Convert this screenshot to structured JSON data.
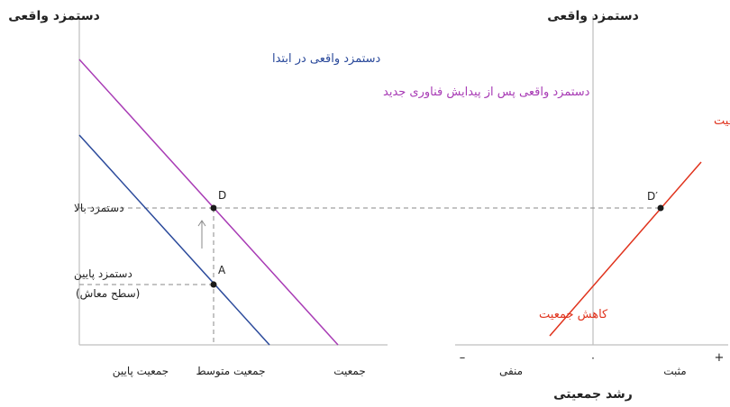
{
  "left_panel": {
    "y_axis_title": "دستمزد واقعی",
    "x_axis_label": "جمعیت",
    "x_tick_low": "جمعیت پایین",
    "x_tick_mid": "جمعیت متوسط",
    "y_tick_high": "دستمزد بالا",
    "y_tick_low_line1": "دستمزد پایین",
    "y_tick_low_line2": "(سطح معاش)",
    "legend_initial": "دستمزد واقعی در ابتدا",
    "legend_after": "دستمزد واقعی پس از پیدایش فناوری جدید",
    "point_a": "A",
    "point_d": "D"
  },
  "right_panel": {
    "y_axis_title": "دستمزد واقعی",
    "x_axis_title": "رشد جمعیتی",
    "minus_sign": "–",
    "plus_sign": "+",
    "zero_label": "۰",
    "negative_label": "منفی",
    "positive_label": "مثبت",
    "label_increase": "افزایش جمعیت",
    "label_decrease": "کاهش جمعیت",
    "point_d_prime": "D′"
  },
  "colors": {
    "initial_line": "#2b4a9b",
    "after_line": "#a83bb5",
    "growth_line": "#e0321c",
    "axis": "#bfbfbf",
    "dashed": "#8a8a8a",
    "text": "#222222"
  }
}
